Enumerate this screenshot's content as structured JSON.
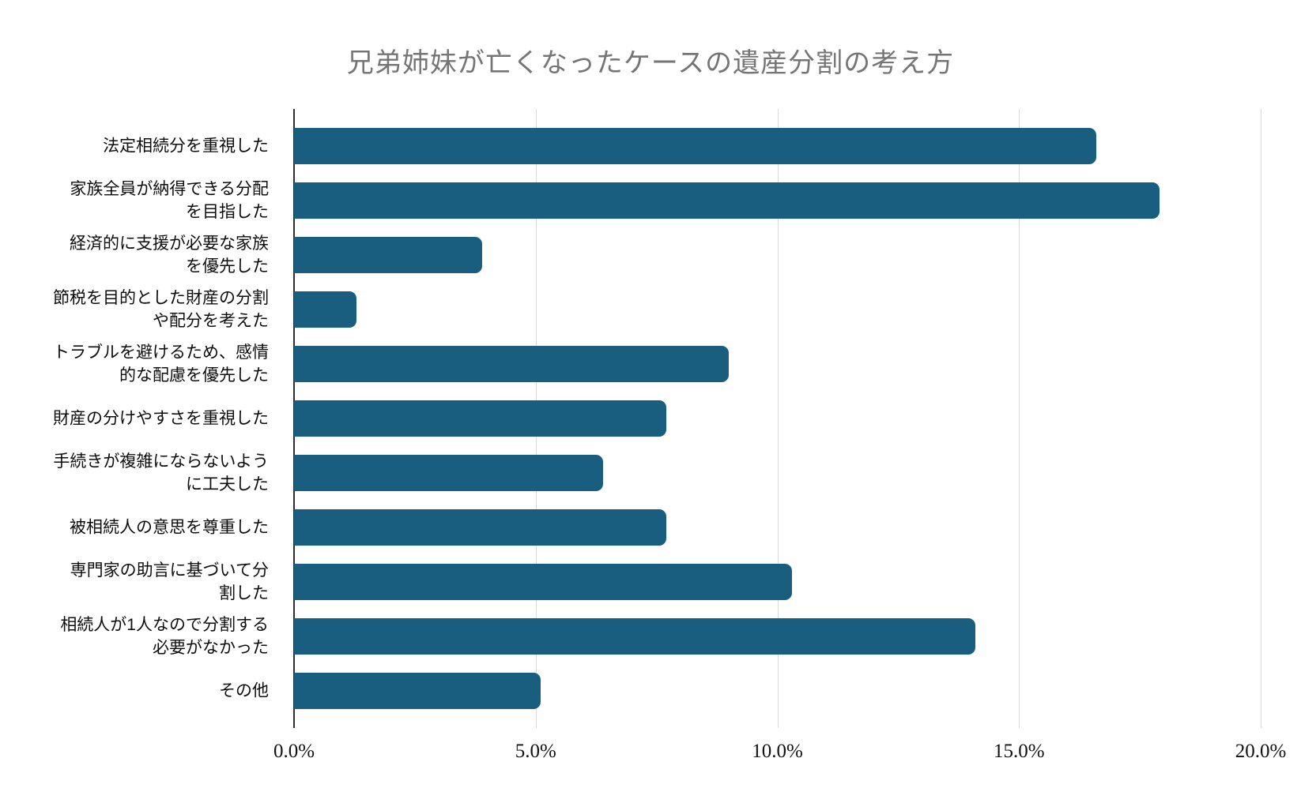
{
  "chart_data": {
    "type": "bar",
    "orientation": "horizontal",
    "title": "兄弟姉妹が亡くなったケースの遺産分割の考え方",
    "categories": [
      [
        "法定相続分を重視した"
      ],
      [
        "家族全員が納得できる分配",
        "を目指した"
      ],
      [
        "経済的に支援が必要な家族",
        "を優先した"
      ],
      [
        "節税を目的とした財産の分割",
        "や配分を考えた"
      ],
      [
        "トラブルを避けるため、感情",
        "的な配慮を優先した"
      ],
      [
        "財産の分けやすさを重視した"
      ],
      [
        "手続きが複雑にならないよう",
        "に工夫した"
      ],
      [
        "被相続人の意思を尊重した"
      ],
      [
        "専門家の助言に基づいて分",
        "割した"
      ],
      [
        "相続人が1人なので分割する",
        "必要がなかった"
      ],
      [
        "その他"
      ]
    ],
    "values": [
      16.6,
      17.9,
      3.9,
      1.3,
      9.0,
      7.7,
      6.4,
      7.7,
      10.3,
      14.1,
      5.1
    ],
    "unit": "%",
    "xlabel": "",
    "ylabel": "",
    "xlim": [
      0,
      20
    ],
    "x_ticks": [
      0,
      5,
      10,
      15,
      20
    ],
    "x_tick_labels": [
      "0.0%",
      "5.0%",
      "10.0%",
      "15.0%",
      "20.0%"
    ],
    "grid": "vertical-only",
    "legend": "none",
    "colors": {
      "bar": "#1a5e7f",
      "title": "#757575",
      "gridline": "#d9d9d9",
      "axis": "#2e2e2e",
      "tick_label": "#111111",
      "category_label": "#0d0d0d",
      "background": "#ffffff"
    }
  }
}
